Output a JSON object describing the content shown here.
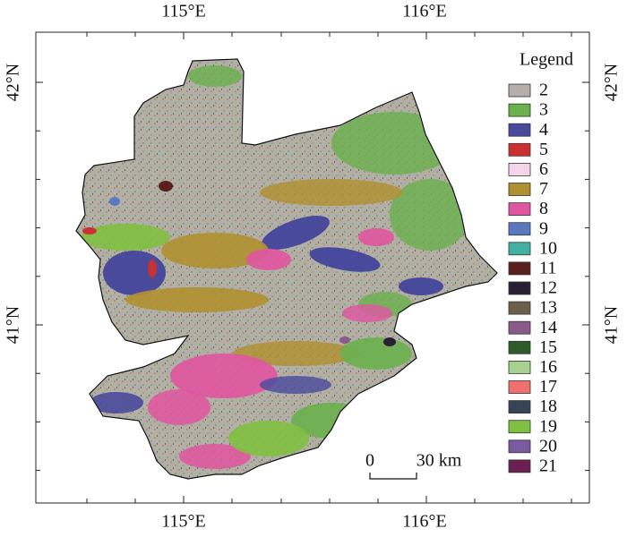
{
  "map": {
    "axis_labels": {
      "top": [
        "115°E",
        "116°E"
      ],
      "bottom": [
        "115°E",
        "116°E"
      ],
      "left": [
        "42°N",
        "41°N"
      ],
      "right": [
        "42°N",
        "41°N"
      ]
    },
    "legend": {
      "title": "Legend",
      "items": [
        {
          "label": "2",
          "color": "#b3aea9"
        },
        {
          "label": "3",
          "color": "#6ab04c"
        },
        {
          "label": "4",
          "color": "#4a4a9c"
        },
        {
          "label": "5",
          "color": "#c83232"
        },
        {
          "label": "6",
          "color": "#f5d5e8"
        },
        {
          "label": "7",
          "color": "#b09030"
        },
        {
          "label": "8",
          "color": "#e055a0"
        },
        {
          "label": "9",
          "color": "#5a78c0"
        },
        {
          "label": "10",
          "color": "#40b0a0"
        },
        {
          "label": "11",
          "color": "#5a2020"
        },
        {
          "label": "12",
          "color": "#2a2035"
        },
        {
          "label": "13",
          "color": "#6b5f4a"
        },
        {
          "label": "14",
          "color": "#8a5a8a"
        },
        {
          "label": "15",
          "color": "#2f5a2a"
        },
        {
          "label": "16",
          "color": "#a8d090"
        },
        {
          "label": "17",
          "color": "#f07070"
        },
        {
          "label": "18",
          "color": "#354555"
        },
        {
          "label": "19",
          "color": "#80c040"
        },
        {
          "label": "20",
          "color": "#7a5aa0"
        },
        {
          "label": "21",
          "color": "#6a2050"
        }
      ]
    },
    "scale_bar": {
      "start": "0",
      "end": "30 km"
    }
  }
}
